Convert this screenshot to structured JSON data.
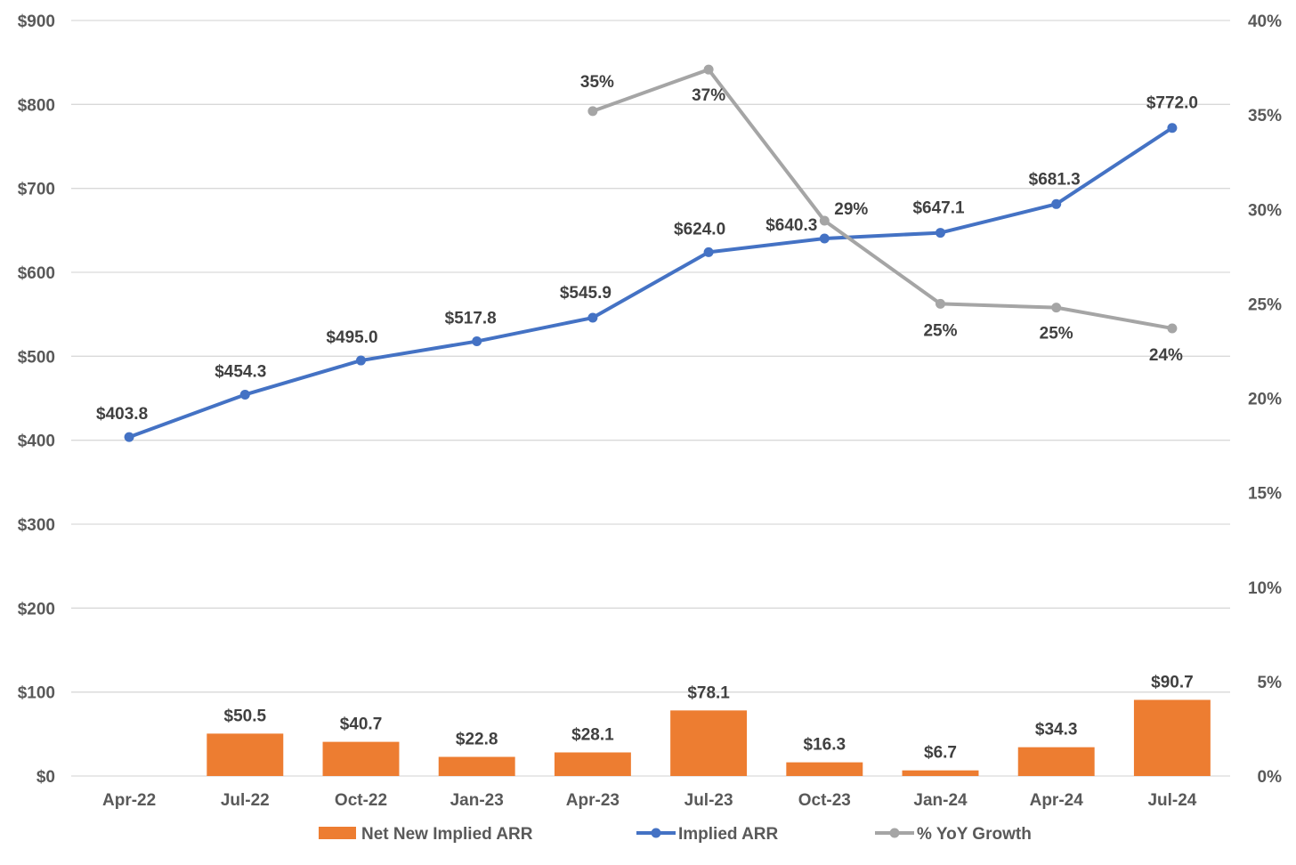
{
  "chart_data": {
    "type": "bar",
    "categories": [
      "Apr-22",
      "Jul-22",
      "Oct-22",
      "Jan-23",
      "Apr-23",
      "Jul-23",
      "Oct-23",
      "Jan-24",
      "Apr-24",
      "Jul-24"
    ],
    "series": [
      {
        "name": "Net New Implied ARR",
        "type": "bar",
        "axis": "left",
        "color": "#ED7D31",
        "values": [
          null,
          50.5,
          40.7,
          22.8,
          28.1,
          78.1,
          16.3,
          6.7,
          34.3,
          90.7
        ],
        "labels": [
          "",
          "$50.5",
          "$40.7",
          "$22.8",
          "$28.1",
          "$78.1",
          "$16.3",
          "$6.7",
          "$34.3",
          "$90.7"
        ]
      },
      {
        "name": "Implied ARR",
        "type": "line",
        "axis": "left",
        "color": "#4472C4",
        "values": [
          403.8,
          454.3,
          495.0,
          517.8,
          545.9,
          624.0,
          640.3,
          647.1,
          681.3,
          772.0
        ],
        "labels": [
          "$403.8",
          "$454.3",
          "$495.0",
          "$517.8",
          "$545.9",
          "$624.0",
          "$640.3",
          "$647.1",
          "$681.3",
          "$772.0"
        ]
      },
      {
        "name": "% YoY Growth",
        "type": "line",
        "axis": "right",
        "color": "#A5A5A5",
        "values": [
          null,
          null,
          null,
          null,
          35.2,
          37.4,
          29.4,
          25.0,
          24.8,
          23.7
        ],
        "labels": [
          "",
          "",
          "",
          "",
          "35%",
          "37%",
          "29%",
          "25%",
          "25%",
          "24%"
        ]
      }
    ],
    "y_left": {
      "ylim": [
        0,
        900
      ],
      "ticks": [
        0,
        100,
        200,
        300,
        400,
        500,
        600,
        700,
        800,
        900
      ],
      "tick_labels": [
        "$0",
        "$100",
        "$200",
        "$300",
        "$400",
        "$500",
        "$600",
        "$700",
        "$800",
        "$900"
      ]
    },
    "y_right": {
      "ylim": [
        0,
        40
      ],
      "ticks": [
        0,
        5,
        10,
        15,
        20,
        25,
        30,
        35,
        40
      ],
      "tick_labels": [
        "0%",
        "5%",
        "10%",
        "15%",
        "20%",
        "25%",
        "30%",
        "35%",
        "40%"
      ]
    },
    "grid": true,
    "legend": "bottom",
    "title": "",
    "xlabel": "",
    "ylabel": ""
  }
}
